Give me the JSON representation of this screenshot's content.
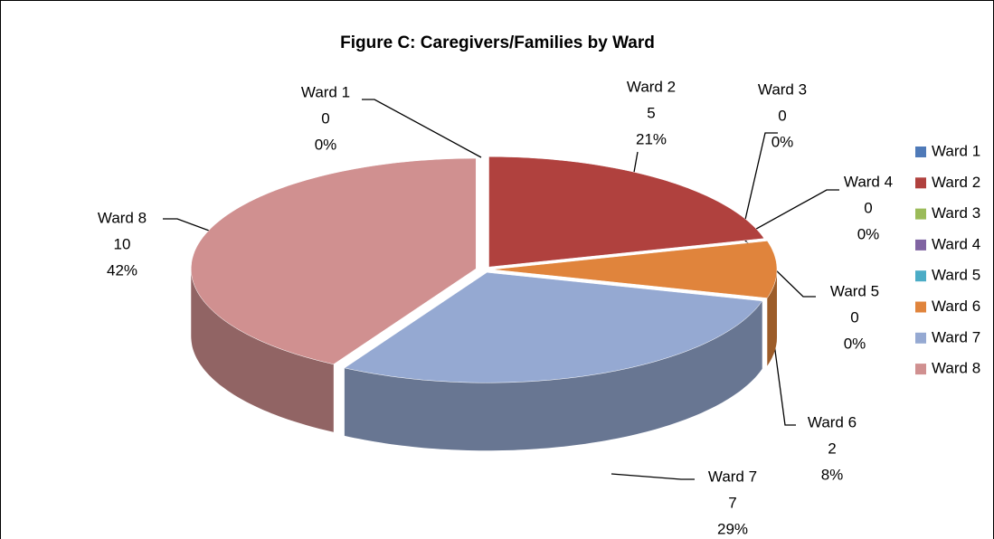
{
  "chart_data": {
    "type": "pie3d",
    "title": "Figure C: Caregivers/Families by Ward",
    "categories": [
      "Ward 1",
      "Ward 2",
      "Ward 3",
      "Ward 4",
      "Ward 5",
      "Ward 6",
      "Ward 7",
      "Ward 8"
    ],
    "values": [
      0,
      5,
      0,
      0,
      0,
      2,
      7,
      10
    ],
    "percent_labels": [
      "0%",
      "21%",
      "0%",
      "0%",
      "0%",
      "8%",
      "29%",
      "42%"
    ],
    "colors": [
      "#4f7ab8",
      "#b0413e",
      "#9bbb59",
      "#8064a2",
      "#4bacc6",
      "#e0843c",
      "#95a9d2",
      "#d09090"
    ],
    "legend": "right"
  }
}
